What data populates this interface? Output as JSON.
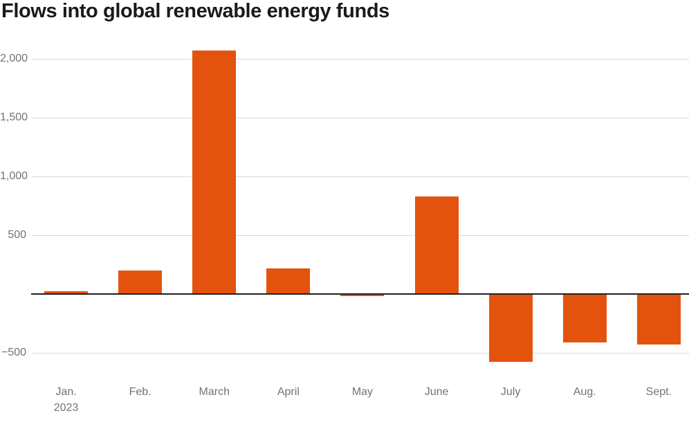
{
  "title": "Flows into global renewable energy funds",
  "colors": {
    "bar": "#e4530e",
    "gridline": "#d8d8d8",
    "zero_line": "#1f1f1f",
    "axis_label": "#737373",
    "title": "#1a1a1a",
    "background": "#ffffff"
  },
  "chart_data": {
    "type": "bar",
    "title": "Flows into global renewable energy funds",
    "categories": [
      "Jan.",
      "Feb.",
      "March",
      "April",
      "May",
      "June",
      "July",
      "Aug.",
      "Sept."
    ],
    "category_sublabels": [
      "2023",
      "",
      "",
      "",
      "",
      "",
      "",
      "",
      ""
    ],
    "values": [
      25,
      200,
      2070,
      215,
      -20,
      830,
      -575,
      -410,
      -430
    ],
    "xlabel": "",
    "ylabel": "",
    "ylim": [
      -650,
      2150
    ],
    "yticks": [
      {
        "value": 2000,
        "label": "2,000"
      },
      {
        "value": 1500,
        "label": "1,500"
      },
      {
        "value": 1000,
        "label": "1,000"
      },
      {
        "value": 500,
        "label": "500"
      },
      {
        "value": -500,
        "label": "−500"
      }
    ],
    "zero_line": true,
    "grid": "horizontal",
    "legend": "none"
  }
}
